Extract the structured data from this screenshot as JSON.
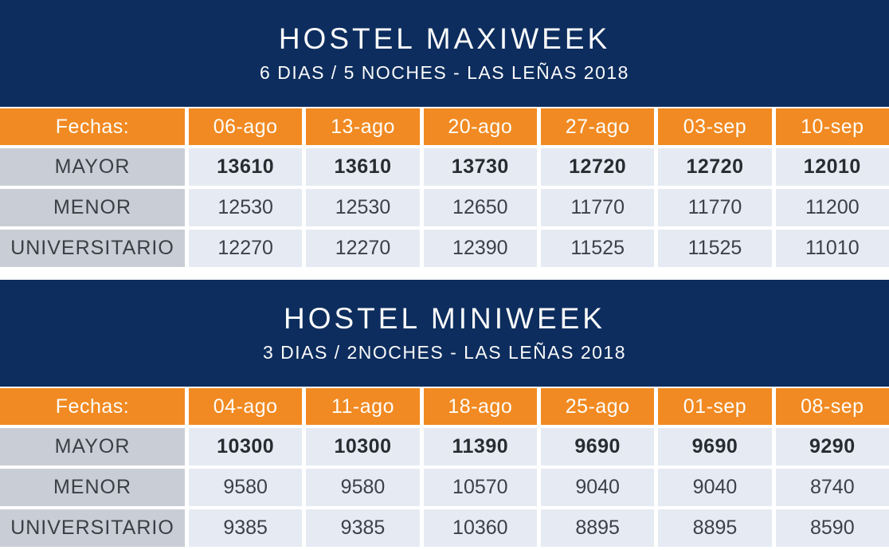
{
  "colors": {
    "banner_navy": "#0d2d5e",
    "header_orange": "#f18a22",
    "label_gray": "#c9ced6",
    "value_light_blue": "#e6ebf3",
    "text_dark": "#3c4149",
    "text_white": "#fdfdfa"
  },
  "sections": [
    {
      "title": "HOSTEL MAXIWEEK",
      "subtitle": "6 DIAS / 5 NOCHES - LAS LEÑAS 2018",
      "table": {
        "header_label": "Fechas:",
        "dates": [
          "06-ago",
          "13-ago",
          "20-ago",
          "27-ago",
          "03-sep",
          "10-sep"
        ],
        "rows": [
          {
            "label": "MAYOR",
            "bold": true,
            "values": [
              "13610",
              "13610",
              "13730",
              "12720",
              "12720",
              "12010"
            ]
          },
          {
            "label": "MENOR",
            "bold": false,
            "values": [
              "12530",
              "12530",
              "12650",
              "11770",
              "11770",
              "11200"
            ]
          },
          {
            "label": "UNIVERSITARIO",
            "bold": false,
            "values": [
              "12270",
              "12270",
              "12390",
              "11525",
              "11525",
              "11010"
            ]
          }
        ]
      }
    },
    {
      "title": "HOSTEL MINIWEEK",
      "subtitle": "3 DIAS / 2NOCHES - LAS LEÑAS 2018",
      "table": {
        "header_label": "Fechas:",
        "dates": [
          "04-ago",
          "11-ago",
          "18-ago",
          "25-ago",
          "01-sep",
          "08-sep"
        ],
        "rows": [
          {
            "label": "MAYOR",
            "bold": true,
            "values": [
              "10300",
              "10300",
              "11390",
              "9690",
              "9690",
              "9290"
            ]
          },
          {
            "label": "MENOR",
            "bold": false,
            "values": [
              "9580",
              "9580",
              "10570",
              "9040",
              "9040",
              "8740"
            ]
          },
          {
            "label": "UNIVERSITARIO",
            "bold": false,
            "values": [
              "9385",
              "9385",
              "10360",
              "8895",
              "8895",
              "8590"
            ]
          }
        ]
      }
    }
  ]
}
